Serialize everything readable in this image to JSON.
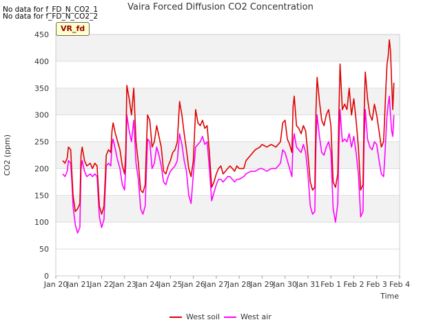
{
  "notices": [
    "No data for f_FD_N_CO2_1",
    "No data for f_FD_N_CO2_2"
  ],
  "badge": "VR_fd",
  "chart_data": {
    "type": "line",
    "title": "Vaira Forced Diffusion CO2 Concentration",
    "xlabel": "Time",
    "ylabel": "CO2 (ppm)",
    "ylim": [
      0,
      450
    ],
    "yticks": [
      0,
      50,
      100,
      150,
      200,
      250,
      300,
      350,
      400,
      450
    ],
    "xlim": [
      0,
      15
    ],
    "xticks": [
      {
        "x": 0,
        "label": "Jan 20"
      },
      {
        "x": 1,
        "label": "Jan 21"
      },
      {
        "x": 2,
        "label": "Jan 22"
      },
      {
        "x": 3,
        "label": "Jan 23"
      },
      {
        "x": 4,
        "label": "Jan 24"
      },
      {
        "x": 5,
        "label": "Jan 25"
      },
      {
        "x": 6,
        "label": "Jan 26"
      },
      {
        "x": 7,
        "label": "Jan 27"
      },
      {
        "x": 8,
        "label": "Jan 28"
      },
      {
        "x": 9,
        "label": "Jan 29"
      },
      {
        "x": 10,
        "label": "Jan 30"
      },
      {
        "x": 11,
        "label": "Jan 31"
      },
      {
        "x": 12,
        "label": "Feb 1"
      },
      {
        "x": 13,
        "label": "Feb 2"
      },
      {
        "x": 14,
        "label": "Feb 3"
      },
      {
        "x": 15,
        "label": "Feb 4"
      }
    ],
    "grid": "horizontal alternating bands",
    "legend_position": "bottom-center",
    "series": [
      {
        "name": "West soil",
        "color": "#dd0000",
        "points": [
          [
            0.3,
            215
          ],
          [
            0.4,
            210
          ],
          [
            0.5,
            220
          ],
          [
            0.55,
            240
          ],
          [
            0.65,
            235
          ],
          [
            0.75,
            150
          ],
          [
            0.85,
            120
          ],
          [
            0.95,
            125
          ],
          [
            1.05,
            135
          ],
          [
            1.1,
            225
          ],
          [
            1.15,
            240
          ],
          [
            1.25,
            215
          ],
          [
            1.35,
            205
          ],
          [
            1.5,
            210
          ],
          [
            1.6,
            200
          ],
          [
            1.7,
            210
          ],
          [
            1.8,
            205
          ],
          [
            1.9,
            130
          ],
          [
            2.0,
            115
          ],
          [
            2.1,
            130
          ],
          [
            2.2,
            225
          ],
          [
            2.3,
            235
          ],
          [
            2.4,
            230
          ],
          [
            2.45,
            270
          ],
          [
            2.5,
            285
          ],
          [
            2.6,
            265
          ],
          [
            2.7,
            250
          ],
          [
            2.8,
            235
          ],
          [
            2.9,
            205
          ],
          [
            3.0,
            190
          ],
          [
            3.05,
            230
          ],
          [
            3.1,
            355
          ],
          [
            3.2,
            330
          ],
          [
            3.3,
            300
          ],
          [
            3.4,
            350
          ],
          [
            3.5,
            250
          ],
          [
            3.6,
            210
          ],
          [
            3.7,
            160
          ],
          [
            3.8,
            155
          ],
          [
            3.9,
            170
          ],
          [
            4.0,
            300
          ],
          [
            4.1,
            290
          ],
          [
            4.2,
            240
          ],
          [
            4.3,
            250
          ],
          [
            4.4,
            280
          ],
          [
            4.5,
            260
          ],
          [
            4.6,
            240
          ],
          [
            4.7,
            195
          ],
          [
            4.8,
            190
          ],
          [
            4.9,
            205
          ],
          [
            5.0,
            215
          ],
          [
            5.1,
            230
          ],
          [
            5.2,
            235
          ],
          [
            5.3,
            250
          ],
          [
            5.4,
            325
          ],
          [
            5.5,
            300
          ],
          [
            5.6,
            265
          ],
          [
            5.7,
            235
          ],
          [
            5.8,
            200
          ],
          [
            5.9,
            185
          ],
          [
            6.0,
            215
          ],
          [
            6.1,
            310
          ],
          [
            6.2,
            285
          ],
          [
            6.3,
            280
          ],
          [
            6.4,
            290
          ],
          [
            6.5,
            275
          ],
          [
            6.6,
            280
          ],
          [
            6.7,
            230
          ],
          [
            6.8,
            165
          ],
          [
            6.9,
            175
          ],
          [
            7.0,
            190
          ],
          [
            7.1,
            200
          ],
          [
            7.2,
            205
          ],
          [
            7.3,
            190
          ],
          [
            7.4,
            195
          ],
          [
            7.5,
            200
          ],
          [
            7.6,
            205
          ],
          [
            7.7,
            200
          ],
          [
            7.8,
            195
          ],
          [
            7.9,
            205
          ],
          [
            8.0,
            200
          ],
          [
            8.2,
            200
          ],
          [
            8.3,
            215
          ],
          [
            8.5,
            225
          ],
          [
            8.7,
            235
          ],
          [
            8.9,
            240
          ],
          [
            9.0,
            245
          ],
          [
            9.2,
            240
          ],
          [
            9.4,
            245
          ],
          [
            9.6,
            240
          ],
          [
            9.8,
            250
          ],
          [
            9.9,
            285
          ],
          [
            10.0,
            290
          ],
          [
            10.1,
            255
          ],
          [
            10.2,
            245
          ],
          [
            10.3,
            230
          ],
          [
            10.35,
            315
          ],
          [
            10.4,
            335
          ],
          [
            10.5,
            280
          ],
          [
            10.6,
            275
          ],
          [
            10.7,
            265
          ],
          [
            10.8,
            280
          ],
          [
            10.9,
            270
          ],
          [
            11.0,
            225
          ],
          [
            11.1,
            175
          ],
          [
            11.2,
            160
          ],
          [
            11.3,
            165
          ],
          [
            11.35,
            310
          ],
          [
            11.4,
            370
          ],
          [
            11.5,
            325
          ],
          [
            11.6,
            290
          ],
          [
            11.7,
            280
          ],
          [
            11.8,
            300
          ],
          [
            11.9,
            310
          ],
          [
            12.0,
            280
          ],
          [
            12.1,
            175
          ],
          [
            12.2,
            165
          ],
          [
            12.3,
            190
          ],
          [
            12.35,
            300
          ],
          [
            12.4,
            395
          ],
          [
            12.5,
            310
          ],
          [
            12.6,
            320
          ],
          [
            12.7,
            310
          ],
          [
            12.8,
            350
          ],
          [
            12.9,
            300
          ],
          [
            13.0,
            330
          ],
          [
            13.1,
            290
          ],
          [
            13.2,
            240
          ],
          [
            13.25,
            200
          ],
          [
            13.3,
            160
          ],
          [
            13.4,
            170
          ],
          [
            13.45,
            300
          ],
          [
            13.5,
            380
          ],
          [
            13.6,
            330
          ],
          [
            13.7,
            300
          ],
          [
            13.8,
            290
          ],
          [
            13.9,
            320
          ],
          [
            14.0,
            300
          ],
          [
            14.1,
            270
          ],
          [
            14.2,
            240
          ],
          [
            14.3,
            250
          ],
          [
            14.35,
            300
          ],
          [
            14.4,
            350
          ],
          [
            14.45,
            395
          ],
          [
            14.5,
            410
          ],
          [
            14.55,
            440
          ],
          [
            14.6,
            420
          ],
          [
            14.65,
            360
          ],
          [
            14.7,
            310
          ],
          [
            14.75,
            360
          ]
        ]
      },
      {
        "name": "West air",
        "color": "#ff00ff",
        "points": [
          [
            0.3,
            190
          ],
          [
            0.4,
            185
          ],
          [
            0.5,
            195
          ],
          [
            0.55,
            215
          ],
          [
            0.65,
            210
          ],
          [
            0.7,
            175
          ],
          [
            0.75,
            130
          ],
          [
            0.85,
            95
          ],
          [
            0.95,
            80
          ],
          [
            1.05,
            90
          ],
          [
            1.1,
            200
          ],
          [
            1.15,
            215
          ],
          [
            1.25,
            195
          ],
          [
            1.35,
            185
          ],
          [
            1.5,
            190
          ],
          [
            1.6,
            185
          ],
          [
            1.7,
            190
          ],
          [
            1.8,
            185
          ],
          [
            1.9,
            110
          ],
          [
            2.0,
            90
          ],
          [
            2.1,
            105
          ],
          [
            2.2,
            205
          ],
          [
            2.3,
            210
          ],
          [
            2.4,
            205
          ],
          [
            2.45,
            245
          ],
          [
            2.5,
            255
          ],
          [
            2.6,
            235
          ],
          [
            2.7,
            215
          ],
          [
            2.8,
            200
          ],
          [
            2.9,
            170
          ],
          [
            3.0,
            160
          ],
          [
            3.05,
            205
          ],
          [
            3.1,
            300
          ],
          [
            3.2,
            270
          ],
          [
            3.3,
            250
          ],
          [
            3.4,
            290
          ],
          [
            3.5,
            210
          ],
          [
            3.6,
            180
          ],
          [
            3.7,
            125
          ],
          [
            3.8,
            115
          ],
          [
            3.9,
            130
          ],
          [
            4.0,
            255
          ],
          [
            4.1,
            250
          ],
          [
            4.2,
            200
          ],
          [
            4.3,
            210
          ],
          [
            4.4,
            240
          ],
          [
            4.5,
            225
          ],
          [
            4.6,
            205
          ],
          [
            4.7,
            175
          ],
          [
            4.8,
            170
          ],
          [
            4.9,
            185
          ],
          [
            5.0,
            195
          ],
          [
            5.1,
            200
          ],
          [
            5.2,
            205
          ],
          [
            5.3,
            215
          ],
          [
            5.4,
            265
          ],
          [
            5.5,
            245
          ],
          [
            5.6,
            215
          ],
          [
            5.7,
            195
          ],
          [
            5.8,
            150
          ],
          [
            5.9,
            135
          ],
          [
            6.0,
            190
          ],
          [
            6.1,
            240
          ],
          [
            6.2,
            245
          ],
          [
            6.3,
            250
          ],
          [
            6.4,
            260
          ],
          [
            6.5,
            245
          ],
          [
            6.6,
            250
          ],
          [
            6.7,
            200
          ],
          [
            6.8,
            140
          ],
          [
            6.9,
            155
          ],
          [
            7.0,
            170
          ],
          [
            7.1,
            180
          ],
          [
            7.2,
            180
          ],
          [
            7.3,
            175
          ],
          [
            7.4,
            180
          ],
          [
            7.5,
            185
          ],
          [
            7.6,
            185
          ],
          [
            7.7,
            180
          ],
          [
            7.8,
            175
          ],
          [
            7.9,
            180
          ],
          [
            8.0,
            180
          ],
          [
            8.2,
            185
          ],
          [
            8.3,
            190
          ],
          [
            8.5,
            195
          ],
          [
            8.7,
            195
          ],
          [
            8.9,
            200
          ],
          [
            9.0,
            200
          ],
          [
            9.2,
            195
          ],
          [
            9.4,
            200
          ],
          [
            9.6,
            200
          ],
          [
            9.8,
            210
          ],
          [
            9.9,
            235
          ],
          [
            10.0,
            230
          ],
          [
            10.1,
            215
          ],
          [
            10.2,
            200
          ],
          [
            10.3,
            185
          ],
          [
            10.35,
            250
          ],
          [
            10.4,
            265
          ],
          [
            10.5,
            240
          ],
          [
            10.6,
            235
          ],
          [
            10.7,
            230
          ],
          [
            10.8,
            245
          ],
          [
            10.9,
            230
          ],
          [
            11.0,
            190
          ],
          [
            11.1,
            130
          ],
          [
            11.2,
            115
          ],
          [
            11.3,
            120
          ],
          [
            11.35,
            250
          ],
          [
            11.4,
            300
          ],
          [
            11.5,
            260
          ],
          [
            11.6,
            230
          ],
          [
            11.7,
            225
          ],
          [
            11.8,
            240
          ],
          [
            11.9,
            250
          ],
          [
            12.0,
            230
          ],
          [
            12.1,
            125
          ],
          [
            12.2,
            100
          ],
          [
            12.3,
            135
          ],
          [
            12.35,
            240
          ],
          [
            12.4,
            310
          ],
          [
            12.5,
            250
          ],
          [
            12.6,
            255
          ],
          [
            12.7,
            250
          ],
          [
            12.8,
            265
          ],
          [
            12.9,
            240
          ],
          [
            13.0,
            260
          ],
          [
            13.1,
            230
          ],
          [
            13.2,
            190
          ],
          [
            13.25,
            150
          ],
          [
            13.3,
            110
          ],
          [
            13.4,
            120
          ],
          [
            13.45,
            250
          ],
          [
            13.5,
            310
          ],
          [
            13.6,
            255
          ],
          [
            13.7,
            240
          ],
          [
            13.8,
            235
          ],
          [
            13.9,
            250
          ],
          [
            14.0,
            245
          ],
          [
            14.1,
            215
          ],
          [
            14.2,
            190
          ],
          [
            14.3,
            185
          ],
          [
            14.35,
            220
          ],
          [
            14.4,
            260
          ],
          [
            14.45,
            300
          ],
          [
            14.5,
            320
          ],
          [
            14.55,
            335
          ],
          [
            14.6,
            300
          ],
          [
            14.65,
            270
          ],
          [
            14.7,
            260
          ],
          [
            14.75,
            300
          ]
        ]
      }
    ]
  }
}
